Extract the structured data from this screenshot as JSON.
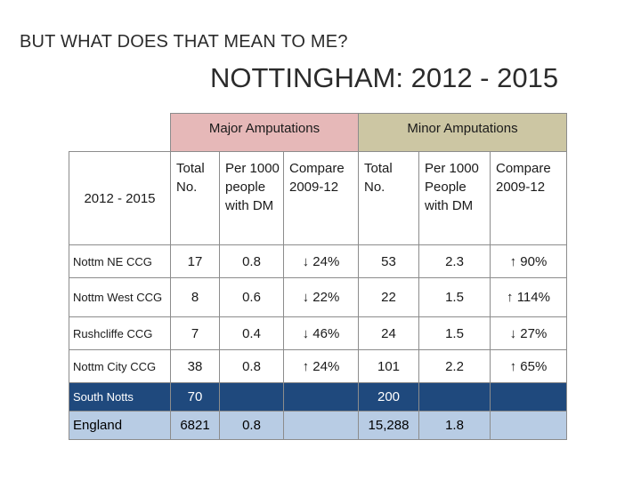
{
  "slide": {
    "subtitle": "BUT WHAT DOES THAT MEAN TO ME?",
    "title": "NOTTINGHAM: 2012 - 2015"
  },
  "table": {
    "group_headers": {
      "major": "Major Amputations",
      "minor": "Minor Amputations"
    },
    "column_headers": {
      "period": "2012 - 2015",
      "major_total": "Total No.",
      "major_per1000": "Per 1000 people with DM",
      "major_compare": "Compare 2009-12",
      "minor_total": "Total No.",
      "minor_per1000": "Per 1000 People with DM",
      "minor_compare": "Compare 2009-12"
    },
    "rows": [
      {
        "label": "Nottm NE CCG",
        "major_total": "17",
        "major_per1000": "0.8",
        "major_compare": "↓ 24%",
        "minor_total": "53",
        "minor_per1000": "2.3",
        "minor_compare": "↑ 90%"
      },
      {
        "label": "Nottm West CCG",
        "major_total": "8",
        "major_per1000": "0.6",
        "major_compare": "↓ 22%",
        "minor_total": "22",
        "minor_per1000": "1.5",
        "minor_compare": "↑ 114%"
      },
      {
        "label": "Rushcliffe CCG",
        "major_total": "7",
        "major_per1000": "0.4",
        "major_compare": "↓ 46%",
        "minor_total": "24",
        "minor_per1000": "1.5",
        "minor_compare": "↓ 27%"
      },
      {
        "label": "Nottm City CCG",
        "major_total": "38",
        "major_per1000": "0.8",
        "major_compare": "↑ 24%",
        "minor_total": "101",
        "minor_per1000": "2.2",
        "minor_compare": "↑ 65%"
      },
      {
        "label": "South Notts",
        "major_total": "70",
        "major_per1000": "",
        "major_compare": "",
        "minor_total": "200",
        "minor_per1000": "",
        "minor_compare": ""
      },
      {
        "label": "England",
        "major_total": "6821",
        "major_per1000": "0.8",
        "major_compare": "",
        "minor_total": "15,288",
        "minor_per1000": "1.8",
        "minor_compare": ""
      }
    ],
    "colors": {
      "major_header": "#e6b8b8",
      "minor_header": "#ccc6a3",
      "south_row": "#1f497d",
      "england_row": "#b8cce4"
    }
  }
}
